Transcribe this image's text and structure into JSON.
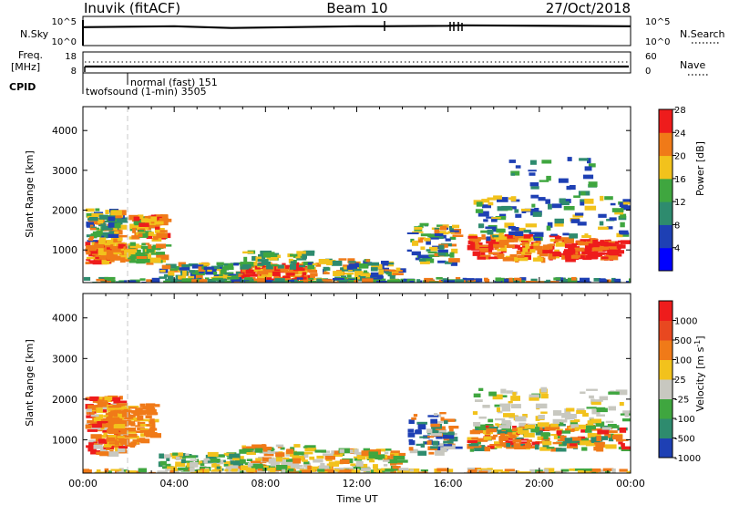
{
  "header": {
    "station": "Inuvik (fitACF)",
    "beam": "Beam 10",
    "date": "27/Oct/2018"
  },
  "colors": {
    "red": "#ee1c1c",
    "orange": "#f07a18",
    "yellow": "#f2c21c",
    "green": "#3fa63f",
    "seagreen": "#2e8b6e",
    "blue": "#1e40b4",
    "grey": "#c8c8c0"
  },
  "chart_data": [
    {
      "type": "line",
      "panel": "nsky",
      "left_label": "N.Sky",
      "right_label": "N.Search",
      "left_ticks": [
        "10^5",
        "10^0"
      ],
      "right_ticks": [
        "10^5",
        "10^0"
      ],
      "x": [
        0,
        4,
        6.5,
        12,
        13,
        16,
        16.5,
        24
      ],
      "series": [
        {
          "values": [
            3.8,
            4.0,
            3.6,
            4.0,
            4.0,
            4.1,
            4.2,
            4.0
          ]
        }
      ]
    },
    {
      "type": "line",
      "panel": "freq",
      "left_label": "Freq.",
      "left_unit": "[MHz]",
      "right_label": "Nave",
      "left_ticks": [
        "18",
        "8"
      ],
      "right_ticks": [
        "60",
        "0"
      ],
      "x": [
        0,
        24
      ],
      "series": [
        {
          "values": [
            10.5,
            10.5
          ]
        },
        {
          "values": [
            12.5,
            12.5
          ]
        }
      ]
    },
    {
      "type": "table",
      "panel": "cpid",
      "label": "CPID",
      "modes": [
        {
          "text": "twofsound (1-min) 3505",
          "start": 0,
          "end": 1.95
        },
        {
          "text": "normal (fast) 151",
          "start": 1.95,
          "end": 24
        }
      ]
    },
    {
      "type": "heatmap",
      "panel": "power",
      "ylabel": "Slant Range [km]",
      "yticks": [
        1000,
        2000,
        3000,
        4000
      ],
      "ylim": [
        180,
        4600
      ],
      "colorbar_label": "Power [dB]",
      "colorbar_ticks": [
        "4",
        "8",
        "12",
        "16",
        "20",
        "24",
        "28"
      ],
      "colorbar_colors": [
        "#0000ff",
        "#1e40b4",
        "#2e8b6e",
        "#3fa63f",
        "#f2c21c",
        "#f07a18",
        "#ee1c1c"
      ]
    },
    {
      "type": "heatmap",
      "panel": "velocity",
      "ylabel": "Slant Range [km]",
      "yticks": [
        1000,
        2000,
        3000,
        4000
      ],
      "ylim": [
        180,
        4600
      ],
      "colorbar_label": "Velocity [m s^-1]",
      "colorbar_ticks": [
        "1000",
        "500",
        "100",
        "25",
        "-25",
        "-100",
        "-500",
        "-1000"
      ],
      "colorbar_colors": [
        "#1e40b4",
        "#2e8b6e",
        "#3fa63f",
        "#c8c8c0",
        "#f2c21c",
        "#f07a18",
        "#e84820",
        "#ee1c1c"
      ],
      "xlabel": "Time UT",
      "xticks": [
        "00:00",
        "04:00",
        "08:00",
        "12:00",
        "16:00",
        "20:00",
        "00:00"
      ]
    }
  ]
}
